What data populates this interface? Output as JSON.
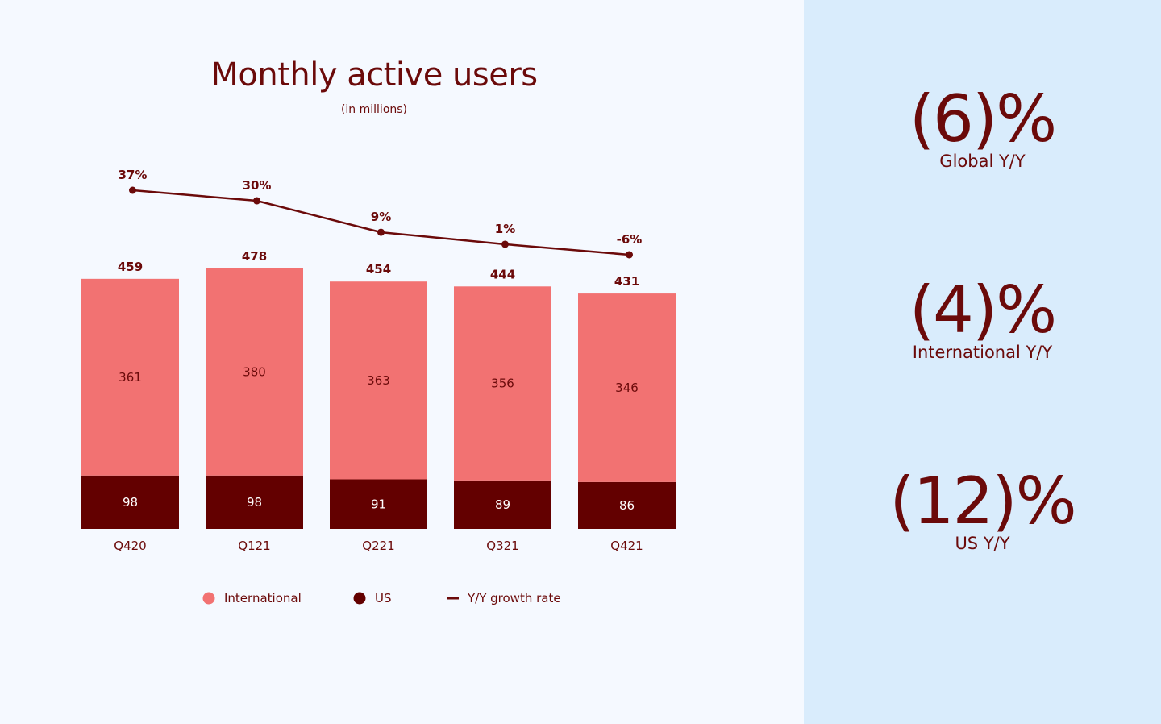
{
  "colors": {
    "international": "#f27272",
    "us": "#630000",
    "line": "#6b0a0a",
    "text": "#6b0a0a",
    "side_bg": "#d9ecfc"
  },
  "chart_data": {
    "type": "bar",
    "stacked": true,
    "title": "Monthly active users",
    "subtitle": "(in millions)",
    "categories": [
      "Q420",
      "Q121",
      "Q221",
      "Q321",
      "Q421"
    ],
    "series": [
      {
        "name": "US",
        "values": [
          98,
          98,
          91,
          89,
          86
        ]
      },
      {
        "name": "International",
        "values": [
          361,
          380,
          363,
          356,
          346
        ]
      }
    ],
    "totals": [
      459,
      478,
      454,
      444,
      431
    ],
    "line_series": {
      "name": "Y/Y growth rate",
      "values": [
        37,
        30,
        9,
        1,
        -6
      ],
      "labels": [
        "37%",
        "30%",
        "9%",
        "1%",
        "-6%"
      ],
      "ylim": [
        -6,
        37
      ]
    },
    "ylim": [
      0,
      478
    ],
    "legend": [
      "International",
      "US",
      "Y/Y growth rate"
    ],
    "legend_position": "bottom"
  },
  "stats": [
    {
      "value": "(6)%",
      "label": "Global Y/Y"
    },
    {
      "value": "(4)%",
      "label": "International Y/Y"
    },
    {
      "value": "(12)%",
      "label": "US Y/Y"
    }
  ]
}
